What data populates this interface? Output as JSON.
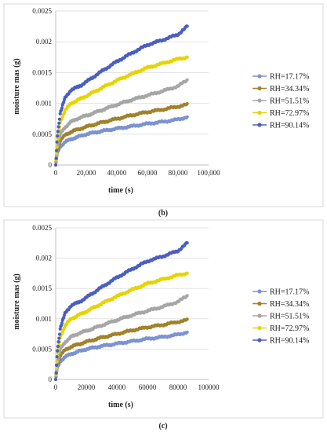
{
  "chart_data": [
    {
      "type": "scatter",
      "caption": "(b)",
      "xlabel": "time (s)",
      "ylabel": "moisture mas (g)",
      "xlim": [
        0,
        100000
      ],
      "ylim": [
        0,
        0.0025
      ],
      "xticks": [
        "0",
        "20,000",
        "40,000",
        "60,000",
        "80,000",
        "100,000"
      ],
      "yticks": [
        "0",
        "0.0005",
        "0.001",
        "0.0015",
        "0.002",
        "0.0025"
      ],
      "legend": "right",
      "series": [
        {
          "name": "RH=17.17%",
          "color": "#7b93d2",
          "x": [
            0,
            1000,
            3000,
            6000,
            10000,
            15000,
            20000,
            30000,
            40000,
            50000,
            60000,
            70000,
            80000,
            86000
          ],
          "y": [
            0,
            0.00018,
            0.0003,
            0.00037,
            0.00042,
            0.00046,
            0.0005,
            0.00055,
            0.00059,
            0.00063,
            0.00067,
            0.0007,
            0.00074,
            0.00078
          ]
        },
        {
          "name": "RH=34.34%",
          "color": "#a1822c",
          "x": [
            0,
            1000,
            3000,
            6000,
            10000,
            15000,
            20000,
            30000,
            40000,
            50000,
            60000,
            70000,
            80000,
            86000
          ],
          "y": [
            0,
            0.00022,
            0.0004,
            0.00048,
            0.00054,
            0.00058,
            0.00062,
            0.00069,
            0.00075,
            0.00081,
            0.00086,
            0.0009,
            0.00095,
            0.00098
          ]
        },
        {
          "name": "RH=51.51%",
          "color": "#a6a6a6",
          "x": [
            0,
            1000,
            3000,
            6000,
            10000,
            15000,
            20000,
            30000,
            40000,
            50000,
            60000,
            70000,
            80000,
            86000
          ],
          "y": [
            0,
            0.00028,
            0.0005,
            0.00061,
            0.0007,
            0.00076,
            0.0008,
            0.00089,
            0.00098,
            0.00106,
            0.00113,
            0.0012,
            0.00128,
            0.00138
          ]
        },
        {
          "name": "RH=72.97%",
          "color": "#e6d400",
          "x": [
            0,
            1000,
            3000,
            6000,
            10000,
            15000,
            20000,
            30000,
            40000,
            50000,
            60000,
            70000,
            80000,
            86000
          ],
          "y": [
            0,
            0.00035,
            0.0007,
            0.00088,
            0.001,
            0.00106,
            0.00112,
            0.00125,
            0.00137,
            0.00148,
            0.00158,
            0.00165,
            0.00172,
            0.00175
          ]
        },
        {
          "name": "RH=90.14%",
          "color": "#4a5ec4",
          "x": [
            0,
            1000,
            3000,
            6000,
            10000,
            15000,
            20000,
            30000,
            40000,
            50000,
            60000,
            70000,
            80000,
            86000
          ],
          "y": [
            0,
            0.00045,
            0.00085,
            0.00108,
            0.00122,
            0.00127,
            0.00135,
            0.00152,
            0.00168,
            0.00182,
            0.00195,
            0.00203,
            0.00212,
            0.00225
          ]
        }
      ]
    },
    {
      "type": "scatter",
      "caption": "(c)",
      "xlabel": "time (s)",
      "ylabel": "moisture mas (g)",
      "xlim": [
        0,
        100000
      ],
      "ylim": [
        0,
        0.0025
      ],
      "xticks": [
        "0",
        "20000",
        "40000",
        "60000",
        "80000",
        "100000"
      ],
      "yticks": [
        "0",
        "0.0005",
        "0.001",
        "0.0015",
        "0.002",
        "0.0025"
      ],
      "legend": "right",
      "series": [
        {
          "name": "RH=17.17%",
          "color": "#7b93d2",
          "x": [
            0,
            1000,
            3000,
            6000,
            10000,
            15000,
            20000,
            30000,
            40000,
            50000,
            60000,
            70000,
            80000,
            86000
          ],
          "y": [
            0,
            0.00018,
            0.0003,
            0.00037,
            0.00042,
            0.00046,
            0.0005,
            0.00055,
            0.00059,
            0.00063,
            0.00067,
            0.0007,
            0.00074,
            0.00078
          ]
        },
        {
          "name": "RH=34.34%",
          "color": "#a1822c",
          "x": [
            0,
            1000,
            3000,
            6000,
            10000,
            15000,
            20000,
            30000,
            40000,
            50000,
            60000,
            70000,
            80000,
            86000
          ],
          "y": [
            0,
            0.00022,
            0.0004,
            0.00048,
            0.00054,
            0.00058,
            0.00062,
            0.00069,
            0.00075,
            0.00081,
            0.00086,
            0.0009,
            0.00095,
            0.00098
          ]
        },
        {
          "name": "RH=51.51%",
          "color": "#a6a6a6",
          "x": [
            0,
            1000,
            3000,
            6000,
            10000,
            15000,
            20000,
            30000,
            40000,
            50000,
            60000,
            70000,
            80000,
            86000
          ],
          "y": [
            0,
            0.00028,
            0.0005,
            0.00061,
            0.0007,
            0.00076,
            0.0008,
            0.00089,
            0.00098,
            0.00106,
            0.00113,
            0.0012,
            0.00128,
            0.00138
          ]
        },
        {
          "name": "RH=72.97%",
          "color": "#e6d400",
          "x": [
            0,
            1000,
            3000,
            6000,
            10000,
            15000,
            20000,
            30000,
            40000,
            50000,
            60000,
            70000,
            80000,
            86000
          ],
          "y": [
            0,
            0.00035,
            0.0007,
            0.00088,
            0.001,
            0.00106,
            0.00112,
            0.00125,
            0.00137,
            0.00148,
            0.00158,
            0.00165,
            0.00172,
            0.00175
          ]
        },
        {
          "name": "RH=90.14%",
          "color": "#4a5ec4",
          "x": [
            0,
            1000,
            3000,
            6000,
            10000,
            15000,
            20000,
            30000,
            40000,
            50000,
            60000,
            70000,
            80000,
            86000
          ],
          "y": [
            0,
            0.00045,
            0.00085,
            0.00108,
            0.00122,
            0.00127,
            0.00135,
            0.00152,
            0.00168,
            0.00182,
            0.00195,
            0.00203,
            0.00212,
            0.00225
          ]
        }
      ]
    }
  ]
}
